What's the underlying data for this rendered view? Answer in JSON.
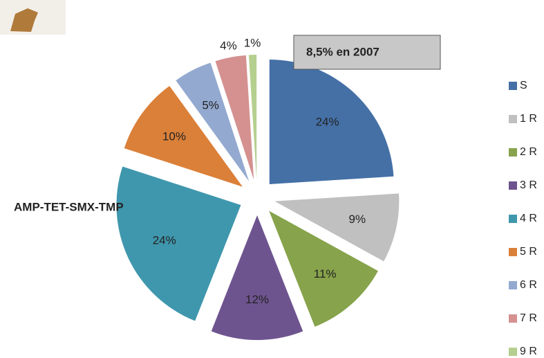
{
  "chart_data": {
    "type": "pie",
    "categories": [
      "S",
      "1 R",
      "2 R",
      "3 R",
      "4 R",
      "5 R",
      "6 R",
      "7 R",
      "9 R"
    ],
    "values": [
      24,
      9,
      11,
      12,
      24,
      10,
      5,
      4,
      1
    ],
    "value_labels": [
      "24%",
      "9%",
      "11%",
      "12%",
      "24%",
      "10%",
      "5%",
      "4%",
      "1%"
    ],
    "colors": [
      "#4470a6",
      "#c0c0c0",
      "#87a34b",
      "#6e548f",
      "#3f97ad",
      "#db8039",
      "#93a9d0",
      "#d49190",
      "#b5cf8f"
    ],
    "annotations": [
      "8,5% en 2007",
      "AMP-TET-SMX-TMP"
    ],
    "legend": "right"
  }
}
